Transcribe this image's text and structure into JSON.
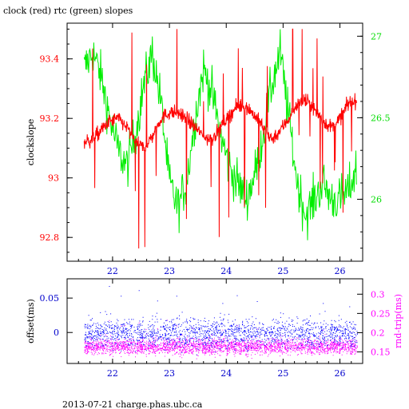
{
  "title": "clock (red) rtc (green) slopes",
  "footer": "2013-07-21 charge.phas.ubc.ca",
  "colors": {
    "clock": "#ff0000",
    "rtc": "#00ee00",
    "offset": "#0000ff",
    "roundtrip": "#ff00ff",
    "axis": "#000000"
  },
  "chart_data": [
    {
      "type": "line",
      "title": "clock (red) rtc (green) slopes",
      "ylabel": "clockslope",
      "xlim": [
        21.2,
        26.4
      ],
      "x_ticks": [
        "22",
        "23",
        "24",
        "25",
        "26"
      ],
      "y_left": {
        "lim": [
          92.72,
          93.52
        ],
        "ticks": [
          "92.8",
          "93",
          "93.2",
          "93.4"
        ]
      },
      "y_right": {
        "lim": [
          25.62,
          27.08
        ],
        "ticks": [
          "26",
          "26.5",
          "27"
        ]
      },
      "grid": false,
      "series": [
        {
          "name": "clock",
          "axis": "left",
          "x": [
            21.5,
            21.65,
            21.8,
            21.95,
            22.1,
            22.25,
            22.4,
            22.55,
            22.7,
            22.85,
            23.0,
            23.15,
            23.3,
            23.45,
            23.6,
            23.75,
            23.9,
            24.05,
            24.2,
            24.35,
            24.5,
            24.65,
            24.8,
            24.95,
            25.1,
            25.25,
            25.4,
            25.55,
            25.7,
            25.85,
            26.0,
            26.15,
            26.3
          ],
          "values": [
            93.12,
            93.13,
            93.16,
            93.19,
            93.2,
            93.17,
            93.12,
            93.1,
            93.14,
            93.2,
            93.22,
            93.22,
            93.2,
            93.17,
            93.14,
            93.13,
            93.17,
            93.21,
            93.24,
            93.24,
            93.21,
            93.17,
            93.13,
            93.16,
            93.2,
            93.25,
            93.26,
            93.23,
            93.19,
            93.17,
            93.2,
            93.25,
            93.26
          ]
        },
        {
          "name": "rtc",
          "axis": "right",
          "x": [
            21.5,
            21.65,
            21.8,
            21.95,
            22.1,
            22.25,
            22.4,
            22.55,
            22.7,
            22.85,
            23.0,
            23.15,
            23.3,
            23.45,
            23.6,
            23.75,
            23.9,
            24.05,
            24.2,
            24.35,
            24.5,
            24.65,
            24.8,
            24.95,
            25.1,
            25.25,
            25.4,
            25.55,
            25.7,
            25.85,
            26.0,
            26.15,
            26.3
          ],
          "values": [
            26.8,
            26.9,
            26.75,
            26.5,
            26.3,
            26.2,
            26.4,
            26.7,
            26.9,
            26.6,
            26.1,
            25.95,
            26.1,
            26.5,
            26.8,
            26.65,
            26.4,
            26.2,
            26.1,
            26.0,
            26.15,
            26.4,
            26.7,
            26.9,
            26.5,
            26.1,
            25.9,
            26.0,
            26.1,
            26.0,
            26.0,
            26.05,
            26.2
          ]
        }
      ]
    },
    {
      "type": "scatter",
      "ylabel_left": "offset(ms)",
      "ylabel_right": "rnd-trip(ms)",
      "xlim": [
        21.2,
        26.4
      ],
      "x_ticks": [
        "22",
        "23",
        "24",
        "25",
        "26"
      ],
      "y_left": {
        "lim": [
          -0.045,
          0.078
        ],
        "ticks": [
          "0",
          "0.05"
        ]
      },
      "y_right": {
        "lim": [
          0.12,
          0.34
        ],
        "ticks": [
          "0.15",
          "0.2",
          "0.25",
          "0.3"
        ]
      },
      "series": [
        {
          "name": "offset",
          "axis": "left",
          "x_range": [
            21.5,
            26.3
          ],
          "center": 0.0,
          "spread": 0.02
        },
        {
          "name": "rnd-trip",
          "axis": "right",
          "x_range": [
            21.5,
            26.3
          ],
          "center": 0.165,
          "spread": 0.02
        }
      ]
    }
  ]
}
